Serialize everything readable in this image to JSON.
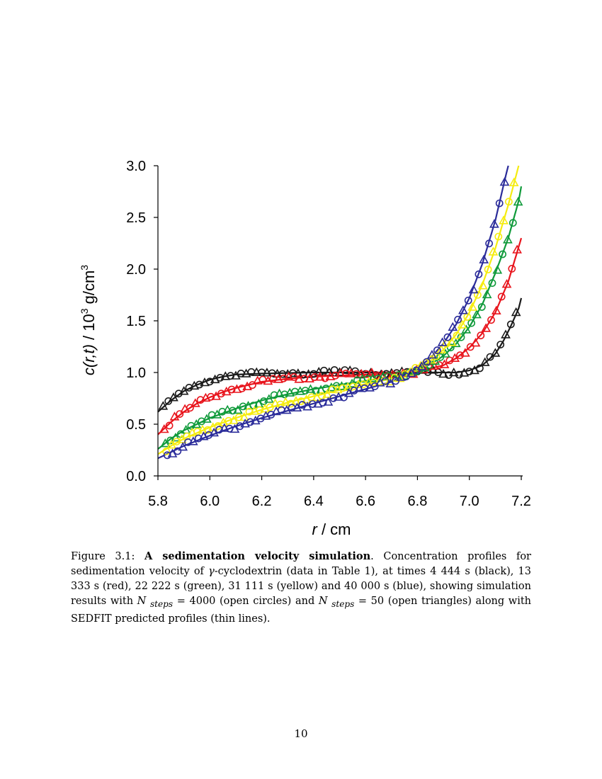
{
  "chart_data": {
    "type": "scatter",
    "xlabel_var": "r",
    "xlabel_unit": " / cm",
    "ylabel_var": "c(r,t)",
    "ylabel_unit_pre": "  / 10",
    "ylabel_exp": "3",
    "ylabel_unit_post": " g/cm",
    "ylabel_exp2": "3",
    "xlim": [
      5.8,
      7.2
    ],
    "ylim": [
      0.0,
      3.0
    ],
    "x_ticks": [
      "5.8",
      "6.0",
      "6.2",
      "6.4",
      "6.6",
      "6.8",
      "7.0",
      "7.2"
    ],
    "y_ticks": [
      "0.0",
      "0.5",
      "1.0",
      "1.5",
      "2.0",
      "2.5",
      "3.0"
    ],
    "series": [
      {
        "name": "4 444 s",
        "color": "#1a1a1a",
        "points": [
          [
            5.8,
            0.62
          ],
          [
            5.85,
            0.73
          ],
          [
            5.9,
            0.82
          ],
          [
            5.95,
            0.88
          ],
          [
            6.0,
            0.93
          ],
          [
            6.05,
            0.96
          ],
          [
            6.1,
            0.98
          ],
          [
            6.2,
            0.99
          ],
          [
            6.4,
            1.0
          ],
          [
            6.6,
            1.0
          ],
          [
            6.8,
            1.0
          ],
          [
            6.95,
            1.0
          ],
          [
            7.0,
            1.02
          ],
          [
            7.05,
            1.07
          ],
          [
            7.1,
            1.18
          ],
          [
            7.13,
            1.3
          ],
          [
            7.16,
            1.45
          ],
          [
            7.19,
            1.62
          ],
          [
            7.2,
            1.72
          ]
        ]
      },
      {
        "name": "13 333 s",
        "color": "#e8141c",
        "points": [
          [
            5.8,
            0.4
          ],
          [
            5.85,
            0.52
          ],
          [
            5.9,
            0.62
          ],
          [
            5.95,
            0.7
          ],
          [
            6.0,
            0.76
          ],
          [
            6.05,
            0.81
          ],
          [
            6.1,
            0.85
          ],
          [
            6.2,
            0.91
          ],
          [
            6.3,
            0.94
          ],
          [
            6.4,
            0.96
          ],
          [
            6.5,
            0.97
          ],
          [
            6.6,
            0.98
          ],
          [
            6.7,
            0.99
          ],
          [
            6.8,
            1.01
          ],
          [
            6.9,
            1.07
          ],
          [
            6.95,
            1.14
          ],
          [
            7.0,
            1.24
          ],
          [
            7.05,
            1.38
          ],
          [
            7.1,
            1.58
          ],
          [
            7.15,
            1.88
          ],
          [
            7.18,
            2.13
          ],
          [
            7.2,
            2.3
          ]
        ]
      },
      {
        "name": "22 222 s",
        "color": "#0f9a3a",
        "points": [
          [
            5.8,
            0.26
          ],
          [
            5.85,
            0.36
          ],
          [
            5.9,
            0.44
          ],
          [
            6.0,
            0.56
          ],
          [
            6.1,
            0.65
          ],
          [
            6.2,
            0.73
          ],
          [
            6.3,
            0.79
          ],
          [
            6.4,
            0.84
          ],
          [
            6.5,
            0.88
          ],
          [
            6.6,
            0.92
          ],
          [
            6.7,
            0.96
          ],
          [
            6.8,
            1.02
          ],
          [
            6.85,
            1.08
          ],
          [
            6.9,
            1.16
          ],
          [
            6.95,
            1.28
          ],
          [
            7.0,
            1.44
          ],
          [
            7.05,
            1.66
          ],
          [
            7.1,
            1.96
          ],
          [
            7.15,
            2.3
          ],
          [
            7.19,
            2.66
          ],
          [
            7.2,
            2.8
          ]
        ]
      },
      {
        "name": "31 111 s",
        "color": "#f5ec10",
        "points": [
          [
            5.8,
            0.21
          ],
          [
            5.85,
            0.29
          ],
          [
            5.9,
            0.36
          ],
          [
            6.0,
            0.47
          ],
          [
            6.1,
            0.56
          ],
          [
            6.2,
            0.64
          ],
          [
            6.3,
            0.71
          ],
          [
            6.4,
            0.77
          ],
          [
            6.5,
            0.83
          ],
          [
            6.6,
            0.89
          ],
          [
            6.7,
            0.94
          ],
          [
            6.8,
            1.03
          ],
          [
            6.85,
            1.11
          ],
          [
            6.9,
            1.22
          ],
          [
            6.95,
            1.37
          ],
          [
            7.0,
            1.58
          ],
          [
            7.05,
            1.85
          ],
          [
            7.1,
            2.2
          ],
          [
            7.15,
            2.62
          ],
          [
            7.19,
            3.0
          ]
        ]
      },
      {
        "name": "40 000 s",
        "color": "#2b2c9a",
        "points": [
          [
            5.8,
            0.17
          ],
          [
            5.85,
            0.23
          ],
          [
            5.9,
            0.29
          ],
          [
            6.0,
            0.39
          ],
          [
            6.1,
            0.48
          ],
          [
            6.2,
            0.56
          ],
          [
            6.3,
            0.63
          ],
          [
            6.4,
            0.7
          ],
          [
            6.5,
            0.77
          ],
          [
            6.6,
            0.84
          ],
          [
            6.7,
            0.91
          ],
          [
            6.8,
            1.04
          ],
          [
            6.85,
            1.14
          ],
          [
            6.9,
            1.28
          ],
          [
            6.95,
            1.47
          ],
          [
            7.0,
            1.72
          ],
          [
            7.05,
            2.05
          ],
          [
            7.1,
            2.47
          ],
          [
            7.14,
            2.9
          ],
          [
            7.15,
            3.0
          ]
        ]
      }
    ]
  },
  "caption": {
    "label": "Figure 3.1:",
    "title": "A sedimentation velocity simulation",
    "text_1": ". Concentration profiles for sedimentation velocity of ",
    "gamma": "γ",
    "text_2": "-cyclodextrin (data in Table 1), at times 4 444 s (black), 13 333 s (red), 22 222 s (green), 31 111 s (yellow) and 40 000 s (blue), showing simulation results with ",
    "n1": "N",
    "sub1": "steps",
    "eq1": " = 4000 (open circles) and ",
    "n2": "N",
    "sub2": "steps",
    "eq2": " = 50 (open triangles) along with SEDFIT predicted profiles (thin lines)."
  },
  "page_number": "10"
}
